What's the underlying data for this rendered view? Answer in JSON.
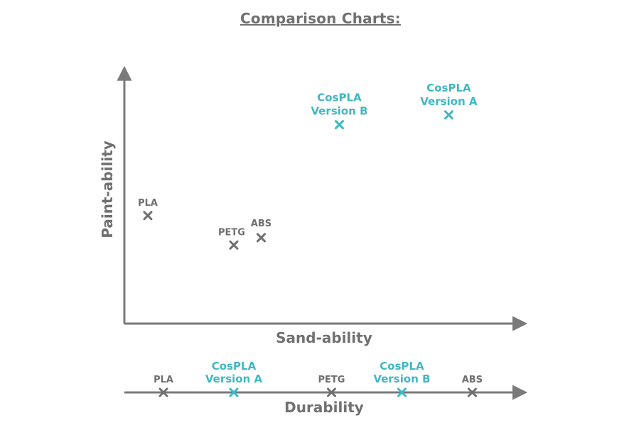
{
  "title": "Comparison Charts:",
  "colors": {
    "axis": "#7a7a7a",
    "standard": "#6f6f6f",
    "cosplay": "#3fb8c3"
  },
  "chart_data": [
    {
      "type": "scatter",
      "xlabel": "Sand-ability",
      "ylabel": "Paint-ability",
      "xlim": [
        0,
        10
      ],
      "ylim": [
        0,
        10
      ],
      "grid": false,
      "points": [
        {
          "label": [
            "PLA"
          ],
          "x": 0.6,
          "y": 4.4,
          "group": "standard"
        },
        {
          "label": [
            "PETG"
          ],
          "x": 2.8,
          "y": 3.2,
          "group": "standard"
        },
        {
          "label": [
            "ABS"
          ],
          "x": 3.5,
          "y": 3.5,
          "group": "standard"
        },
        {
          "label": [
            "CosPLA",
            "Version B"
          ],
          "x": 5.5,
          "y": 8.1,
          "group": "cosplay"
        },
        {
          "label": [
            "CosPLA",
            "Version A"
          ],
          "x": 8.3,
          "y": 8.5,
          "group": "cosplay"
        }
      ]
    },
    {
      "type": "scatter",
      "xlabel": "Durability",
      "xlim": [
        0,
        10
      ],
      "points": [
        {
          "label": [
            "PLA"
          ],
          "x": 1.0,
          "group": "standard"
        },
        {
          "label": [
            "CosPLA",
            "Version A"
          ],
          "x": 2.8,
          "group": "cosplay"
        },
        {
          "label": [
            "PETG"
          ],
          "x": 5.3,
          "group": "standard"
        },
        {
          "label": [
            "CosPLA",
            "Version B"
          ],
          "x": 7.1,
          "group": "cosplay"
        },
        {
          "label": [
            "ABS"
          ],
          "x": 8.9,
          "group": "standard"
        }
      ]
    }
  ]
}
